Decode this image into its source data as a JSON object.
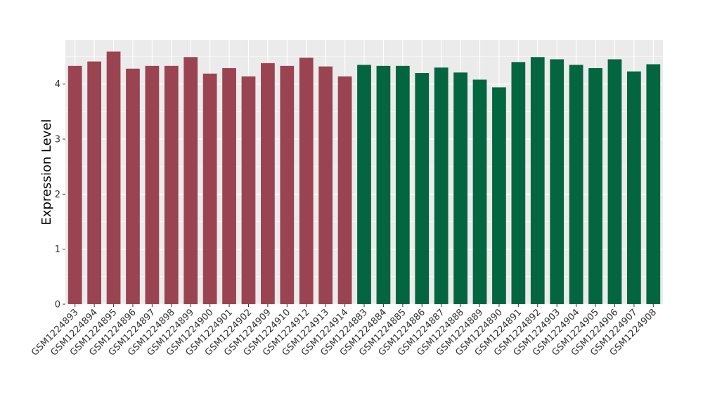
{
  "chart_data": {
    "type": "bar",
    "title": "",
    "xlabel": "",
    "ylabel": "Expression Level",
    "ylim": [
      0,
      4.8
    ],
    "yticks": [
      "0",
      "1",
      "2",
      "3",
      "4"
    ],
    "grid": true,
    "legend": "none",
    "categories": [
      "GSM1224893",
      "GSM1224894",
      "GSM1224895",
      "GSM1224896",
      "GSM1224897",
      "GSM1224898",
      "GSM1224899",
      "GSM1224900",
      "GSM1224901",
      "GSM1224902",
      "GSM1224909",
      "GSM1224910",
      "GSM1224912",
      "GSM1224913",
      "GSM1224914",
      "GSM1224883",
      "GSM1224884",
      "GSM1224885",
      "GSM1224886",
      "GSM1224887",
      "GSM1224888",
      "GSM1224889",
      "GSM1224890",
      "GSM1224891",
      "GSM1224892",
      "GSM1224903",
      "GSM1224904",
      "GSM1224905",
      "GSM1224906",
      "GSM1224907",
      "GSM1224908"
    ],
    "values": [
      4.33,
      4.41,
      4.59,
      4.28,
      4.33,
      4.33,
      4.49,
      4.19,
      4.29,
      4.14,
      4.38,
      4.33,
      4.48,
      4.32,
      4.14,
      4.35,
      4.33,
      4.33,
      4.2,
      4.3,
      4.21,
      4.08,
      3.94,
      4.4,
      4.49,
      4.45,
      4.35,
      4.29,
      4.45,
      4.23,
      4.36
    ],
    "bar_colors": [
      "#9b4451",
      "#9b4451",
      "#9b4451",
      "#9b4451",
      "#9b4451",
      "#9b4451",
      "#9b4451",
      "#9b4451",
      "#9b4451",
      "#9b4451",
      "#9b4451",
      "#9b4451",
      "#9b4451",
      "#9b4451",
      "#9b4451",
      "#046541",
      "#046541",
      "#046541",
      "#046541",
      "#046541",
      "#046541",
      "#046541",
      "#046541",
      "#046541",
      "#046541",
      "#046541",
      "#046541",
      "#046541",
      "#046541",
      "#046541",
      "#046541"
    ],
    "panel_color": "#ebebeb",
    "grid_color": "#ffffff"
  }
}
